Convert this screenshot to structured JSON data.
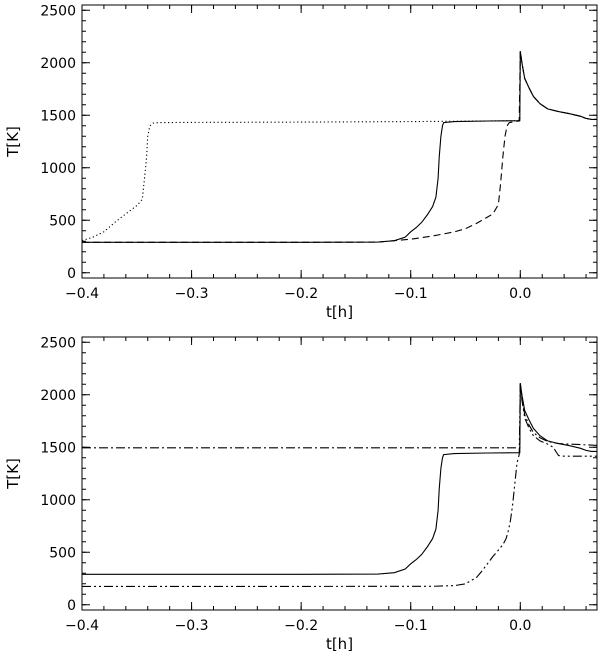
{
  "chart_data": [
    {
      "type": "line",
      "xlabel": "t[h]",
      "ylabel": "T[K]",
      "xlim": [
        -0.4,
        0.07
      ],
      "ylim": [
        -50,
        2550
      ],
      "xticks": [
        -0.4,
        -0.3,
        -0.2,
        -0.1,
        0.0
      ],
      "xtick_labels": [
        "−0.4",
        "−0.3",
        "−0.2",
        "−0.1",
        "0.0"
      ],
      "yticks": [
        0,
        500,
        1000,
        1500,
        2000,
        2500
      ],
      "ytick_labels": [
        "0",
        "500",
        "1000",
        "1500",
        "2000",
        "2500"
      ],
      "grid": false,
      "series": [
        {
          "style": "solid",
          "x": [
            -0.4,
            -0.2,
            -0.13,
            -0.115,
            -0.105,
            -0.1,
            -0.095,
            -0.09,
            -0.085,
            -0.08,
            -0.077,
            -0.075,
            -0.074,
            -0.0725,
            -0.071,
            -0.07,
            -0.06,
            -0.03,
            -0.0005,
            0.0,
            0.0015,
            0.004,
            0.008,
            0.012,
            0.018,
            0.025,
            0.035,
            0.045,
            0.055,
            0.06,
            0.065,
            0.07
          ],
          "y": [
            290,
            290,
            292,
            305,
            340,
            390,
            430,
            480,
            550,
            630,
            720,
            900,
            1100,
            1300,
            1400,
            1430,
            1440,
            1445,
            1448,
            2110,
            2000,
            1850,
            1760,
            1680,
            1610,
            1560,
            1535,
            1515,
            1490,
            1470,
            1460,
            1460
          ]
        },
        {
          "style": "dashed",
          "x": [
            -0.4,
            -0.2,
            -0.13,
            -0.1,
            -0.08,
            -0.06,
            -0.05,
            -0.04,
            -0.03,
            -0.025,
            -0.02,
            -0.018,
            -0.016,
            -0.014,
            -0.012,
            -0.01,
            -0.005,
            -0.001,
            0.0,
            0.0015,
            0.004,
            0.008,
            0.012,
            0.018,
            0.025,
            0.035,
            0.045,
            0.055,
            0.06,
            0.065,
            0.07
          ],
          "y": [
            290,
            290,
            292,
            320,
            350,
            390,
            420,
            470,
            530,
            560,
            650,
            850,
            1100,
            1300,
            1400,
            1430,
            1440,
            1445,
            2110,
            2000,
            1850,
            1760,
            1680,
            1610,
            1560,
            1535,
            1515,
            1490,
            1470,
            1460,
            1460
          ]
        },
        {
          "style": "dotted",
          "x": [
            -0.4,
            -0.39,
            -0.38,
            -0.37,
            -0.36,
            -0.35,
            -0.345,
            -0.343,
            -0.341,
            -0.34,
            -0.338,
            -0.335,
            -0.33,
            -0.3,
            -0.2,
            -0.1,
            -0.03,
            -0.0005,
            0.0,
            0.0015,
            0.004,
            0.008,
            0.012,
            0.018,
            0.025,
            0.035,
            0.045,
            0.055,
            0.06,
            0.065,
            0.07
          ],
          "y": [
            305,
            340,
            390,
            480,
            560,
            640,
            700,
            900,
            1100,
            1300,
            1400,
            1425,
            1430,
            1432,
            1435,
            1440,
            1445,
            1448,
            2110,
            2000,
            1850,
            1760,
            1680,
            1610,
            1560,
            1535,
            1515,
            1490,
            1470,
            1460,
            1460
          ]
        }
      ]
    },
    {
      "type": "line",
      "xlabel": "t[h]",
      "ylabel": "T[K]",
      "xlim": [
        -0.4,
        0.07
      ],
      "ylim": [
        -50,
        2550
      ],
      "xticks": [
        -0.4,
        -0.3,
        -0.2,
        -0.1,
        0.0
      ],
      "xtick_labels": [
        "−0.4",
        "−0.3",
        "−0.2",
        "−0.1",
        "0.0"
      ],
      "yticks": [
        0,
        500,
        1000,
        1500,
        2000,
        2500
      ],
      "ytick_labels": [
        "0",
        "500",
        "1000",
        "1500",
        "2000",
        "2500"
      ],
      "grid": false,
      "series": [
        {
          "style": "solid",
          "x": [
            -0.4,
            -0.2,
            -0.13,
            -0.115,
            -0.105,
            -0.1,
            -0.095,
            -0.09,
            -0.085,
            -0.08,
            -0.077,
            -0.075,
            -0.074,
            -0.0725,
            -0.071,
            -0.07,
            -0.06,
            -0.03,
            -0.0005,
            0.0,
            0.0015,
            0.004,
            0.008,
            0.012,
            0.018,
            0.025,
            0.035,
            0.045,
            0.055,
            0.06,
            0.065,
            0.07
          ],
          "y": [
            290,
            290,
            292,
            305,
            340,
            390,
            430,
            480,
            550,
            630,
            720,
            900,
            1100,
            1300,
            1400,
            1430,
            1440,
            1445,
            1448,
            2110,
            2000,
            1850,
            1760,
            1680,
            1610,
            1560,
            1535,
            1515,
            1490,
            1470,
            1460,
            1460
          ]
        },
        {
          "style": "dash-dot",
          "x": [
            -0.4,
            -0.2,
            -0.05,
            -0.02,
            -0.005,
            -0.0005,
            0.0,
            0.0015,
            0.004,
            0.008,
            0.012,
            0.018,
            0.025,
            0.035,
            0.045,
            0.055,
            0.06,
            0.065,
            0.07
          ],
          "y": [
            1495,
            1495,
            1495,
            1495,
            1495,
            1495,
            2110,
            1980,
            1810,
            1710,
            1640,
            1590,
            1555,
            1535,
            1530,
            1525,
            1522,
            1520,
            1518
          ]
        },
        {
          "style": "dash-dot-dot",
          "x": [
            -0.4,
            -0.2,
            -0.08,
            -0.06,
            -0.05,
            -0.04,
            -0.035,
            -0.03,
            -0.025,
            -0.02,
            -0.017,
            -0.015,
            -0.013,
            -0.011,
            -0.009,
            -0.007,
            -0.005,
            -0.003,
            -0.001,
            0.0,
            0.0015,
            0.004,
            0.008,
            0.012,
            0.018,
            0.025,
            0.03,
            0.033,
            0.035,
            0.04,
            0.05,
            0.06,
            0.07
          ],
          "y": [
            175,
            175,
            176,
            182,
            200,
            260,
            320,
            390,
            460,
            520,
            560,
            590,
            630,
            700,
            800,
            950,
            1150,
            1350,
            1430,
            2110,
            1950,
            1780,
            1680,
            1610,
            1560,
            1530,
            1500,
            1450,
            1420,
            1415,
            1415,
            1415,
            1415
          ]
        }
      ]
    }
  ]
}
